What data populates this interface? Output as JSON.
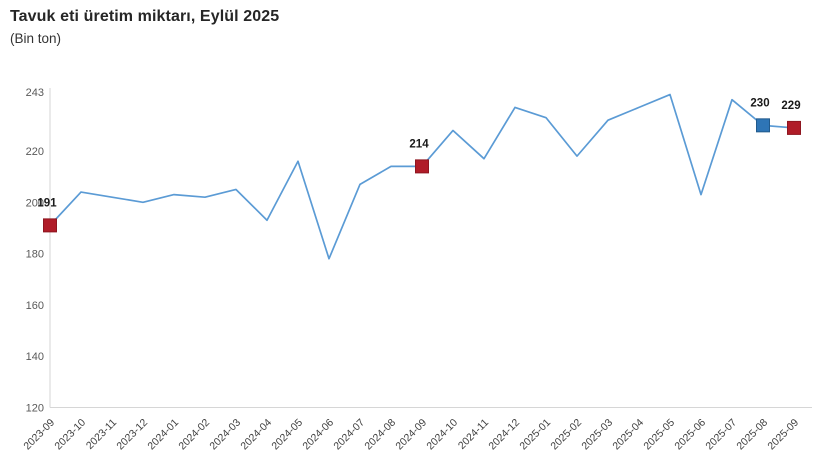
{
  "header": {
    "title": "Tavuk eti üretim miktarı, Eylül 2025",
    "subtitle": "(Bin ton)"
  },
  "colors": {
    "line": "#5B9BD5",
    "marker_red": "#B01C28",
    "marker_red_border": "#8E1620",
    "marker_blue": "#2E75B6",
    "marker_blue_border": "#215A8C",
    "axis_line": "#D6D6D6",
    "ytick_text": "#595959",
    "xtick_text": "#404040",
    "datalabel_text": "#1A1A1A"
  },
  "chart_data": {
    "type": "line",
    "title": "Tavuk eti üretim miktarı, Eylül 2025",
    "subtitle": "(Bin ton)",
    "xlabel": "",
    "ylabel": "Bin ton",
    "grid": false,
    "legend_position": "none",
    "ylim": [
      120,
      243
    ],
    "yticks": [
      243,
      220,
      200,
      180,
      160,
      140,
      120
    ],
    "categories": [
      "2023-09",
      "2023-10",
      "2023-11",
      "2023-12",
      "2024-01",
      "2024-02",
      "2024-03",
      "2024-04",
      "2024-05",
      "2024-06",
      "2024-07",
      "2024-08",
      "2024-09",
      "2024-10",
      "2024-11",
      "2024-12",
      "2025-01",
      "2025-02",
      "2025-03",
      "2025-04",
      "2025-05",
      "2025-06",
      "2025-07",
      "2025-08",
      "2025-09"
    ],
    "series": [
      {
        "name": "Tavuk eti üretim miktarı (bin ton)",
        "values": [
          191,
          204,
          202,
          200,
          203,
          202,
          205,
          193,
          216,
          178,
          207,
          214,
          214,
          228,
          217,
          237,
          233,
          218,
          232,
          237,
          242,
          203,
          240,
          230,
          229
        ]
      }
    ],
    "highlights": [
      {
        "index": 0,
        "label": "191",
        "marker": "red-square",
        "category": "2023-09"
      },
      {
        "index": 12,
        "label": "214",
        "marker": "red-square",
        "category": "2024-09"
      },
      {
        "index": 23,
        "label": "230",
        "marker": "blue-square",
        "category": "2025-08"
      },
      {
        "index": 24,
        "label": "229",
        "marker": "red-square",
        "category": "2025-09"
      }
    ]
  }
}
